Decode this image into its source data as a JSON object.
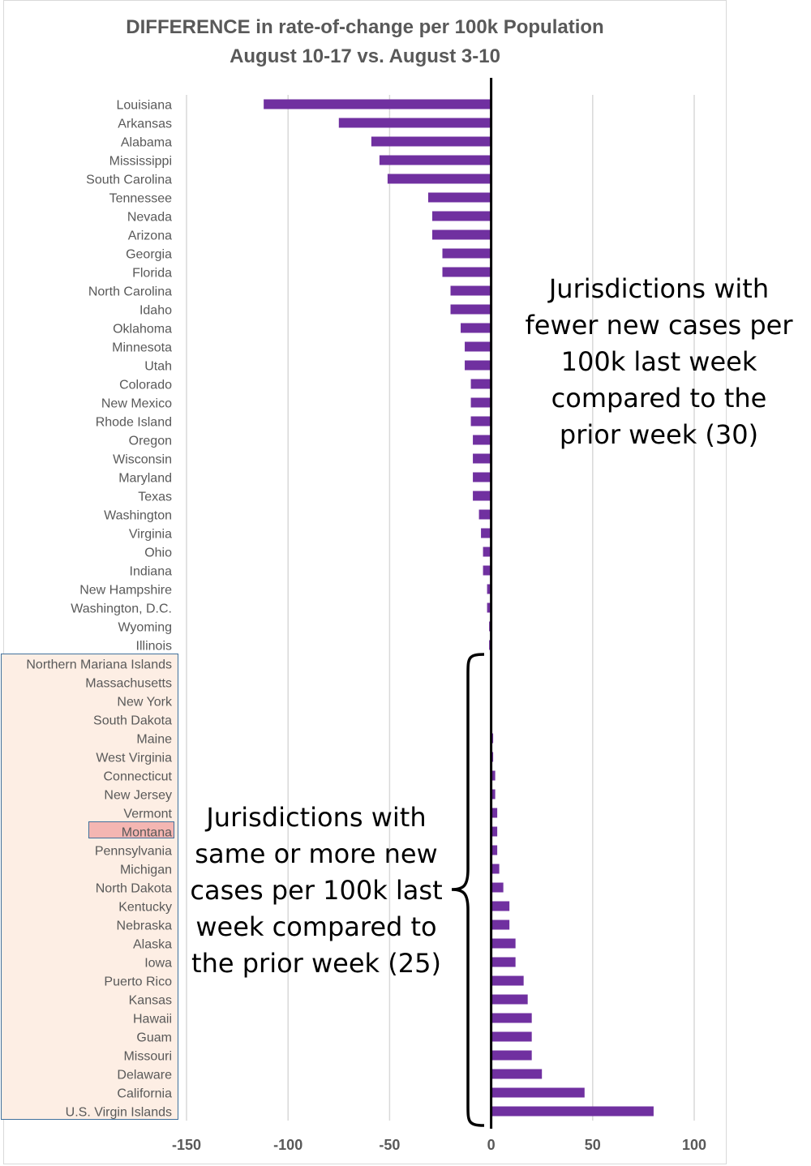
{
  "chart_data": {
    "type": "bar",
    "orientation": "horizontal",
    "title": "DIFFERENCE in rate-of-change per 100k Population",
    "subtitle": "August 10-17 vs. August 3-10",
    "xlim": [
      -150,
      100
    ],
    "xticks": [
      -150,
      -100,
      -50,
      0,
      50,
      100
    ],
    "grid": true,
    "bar_color": "#7030a0",
    "categories": [
      "Louisiana",
      "Arkansas",
      "Alabama",
      "Mississippi",
      "South Carolina",
      "Tennessee",
      "Nevada",
      "Arizona",
      "Georgia",
      "Florida",
      "North Carolina",
      "Idaho",
      "Oklahoma",
      "Minnesota",
      "Utah",
      "Colorado",
      "New Mexico",
      "Rhode Island",
      "Oregon",
      "Wisconsin",
      "Maryland",
      "Texas",
      "Washington",
      "Virginia",
      "Ohio",
      "Indiana",
      "New Hampshire",
      "Washington, D.C.",
      "Wyoming",
      "Illinois",
      "Northern Mariana Islands",
      "Massachusetts",
      "New York",
      "South Dakota",
      "Maine",
      "West Virginia",
      "Connecticut",
      "New Jersey",
      "Vermont",
      "Montana",
      "Pennsylvania",
      "Michigan",
      "North Dakota",
      "Kentucky",
      "Nebraska",
      "Alaska",
      "Iowa",
      "Puerto Rico",
      "Kansas",
      "Hawaii",
      "Guam",
      "Missouri",
      "Delaware",
      "California",
      "U.S. Virgin Islands"
    ],
    "values": [
      -112,
      -75,
      -59,
      -55,
      -51,
      -31,
      -29,
      -29,
      -24,
      -24,
      -20,
      -20,
      -15,
      -13,
      -13,
      -10,
      -10,
      -10,
      -9,
      -9,
      -9,
      -9,
      -6,
      -5,
      -4,
      -4,
      -2,
      -2,
      -1,
      -1,
      0,
      0,
      0,
      0,
      1,
      1,
      2,
      2,
      3,
      3,
      3,
      4,
      6,
      9,
      9,
      12,
      12,
      16,
      18,
      20,
      20,
      20,
      25,
      46,
      80
    ],
    "annotations": {
      "fewer": [
        "Jurisdictions with",
        "fewer new cases per",
        "100k last week",
        "compared to the",
        "prior week (30)"
      ],
      "more": [
        "Jurisdictions with",
        "same or more new",
        "cases per 100k last",
        "week compared to",
        "the prior week (25)"
      ]
    },
    "highlight_color": "#fdeee4",
    "montana_highlight_color": "#f4b6b2",
    "highlight_border_color": "#41719c"
  }
}
